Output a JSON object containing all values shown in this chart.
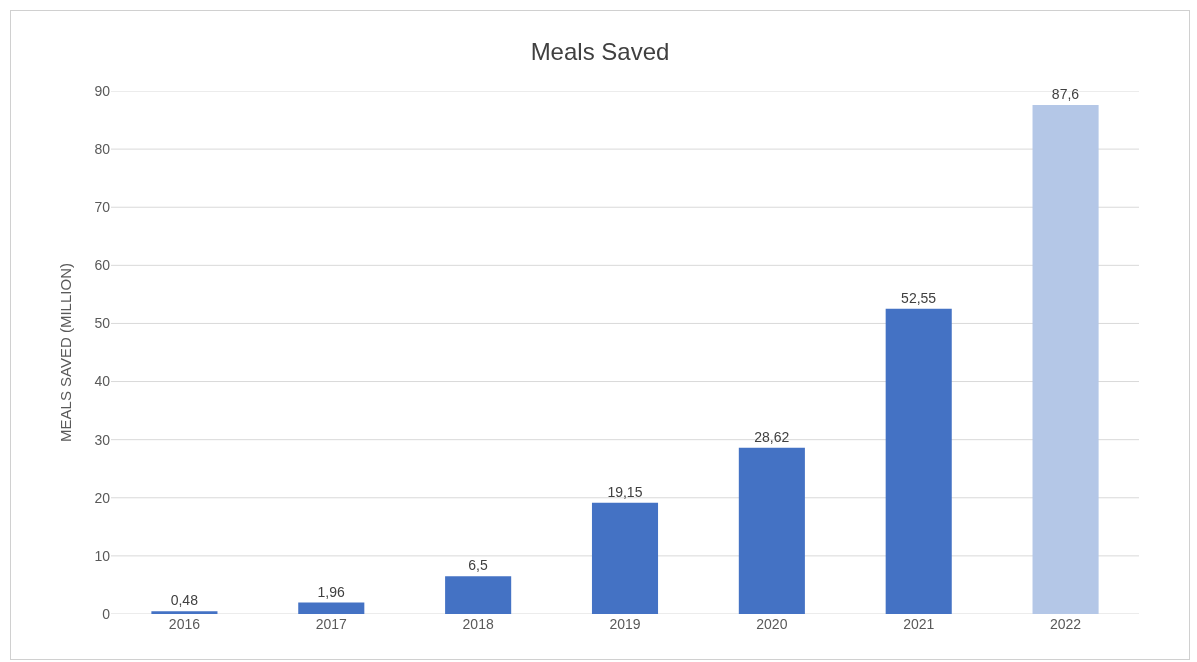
{
  "chart_data": {
    "type": "bar",
    "title": "Meals Saved",
    "ylabel": "MEALS SAVED (MILLION)",
    "categories": [
      "2016",
      "2017",
      "2018",
      "2019",
      "2020",
      "2021",
      "2022"
    ],
    "values": [
      0.48,
      1.96,
      6.5,
      19.15,
      28.62,
      52.55,
      87.6
    ],
    "colors": [
      "#4472c4",
      "#4472c4",
      "#4472c4",
      "#4472c4",
      "#4472c4",
      "#4472c4",
      "#b4c7e7"
    ],
    "value_labels": [
      "0,48",
      "1,96",
      "6,5",
      "19,15",
      "28,62",
      "52,55",
      "87,6"
    ],
    "ylim": [
      0,
      90
    ],
    "yticks": [
      0,
      10,
      20,
      30,
      40,
      50,
      60,
      70,
      80,
      90
    ],
    "grid": "y"
  }
}
